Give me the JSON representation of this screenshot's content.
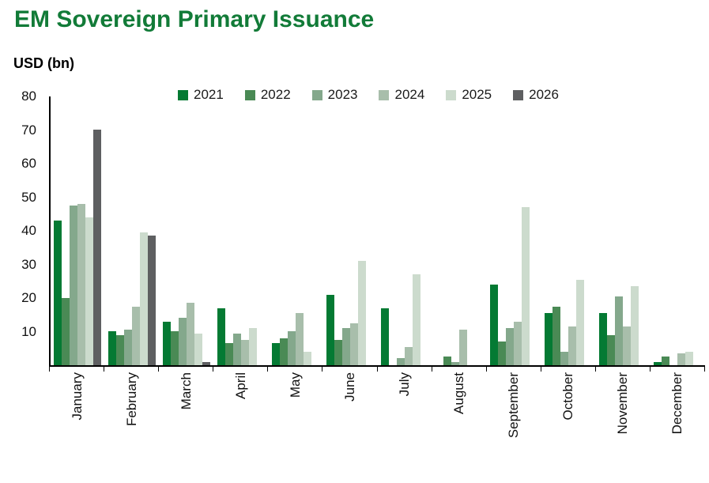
{
  "colors": {
    "title_green": "#127B38",
    "axis": "#000000",
    "background": "#ffffff",
    "series_2021": "#047A33",
    "series_2022": "#4A8A55",
    "series_2023": "#84A88C",
    "series_2024": "#A8BEAB",
    "series_2025": "#CCDBCD",
    "series_2026": "#5E5F61"
  },
  "chart_data": {
    "type": "bar",
    "title": "EM Sovereign Primary Issuance",
    "ylabel": "USD (bn)",
    "xlabel": "",
    "ylim": [
      0,
      80
    ],
    "yticks": [
      10,
      20,
      30,
      40,
      50,
      60,
      70,
      80
    ],
    "grid": false,
    "legend_position": "top",
    "categories": [
      "January",
      "February",
      "March",
      "April",
      "May",
      "June",
      "July",
      "August",
      "September",
      "October",
      "November",
      "December"
    ],
    "series": [
      {
        "name": "2021",
        "color": "#047A33",
        "values": [
          43,
          10,
          13,
          17,
          6.5,
          21,
          17,
          0,
          24,
          15.5,
          15.5,
          1
        ]
      },
      {
        "name": "2022",
        "color": "#4A8A55",
        "values": [
          20,
          9,
          10,
          6.5,
          8,
          7.5,
          0,
          2.5,
          7,
          17.5,
          9,
          2.5
        ]
      },
      {
        "name": "2023",
        "color": "#84A88C",
        "values": [
          47.5,
          10.5,
          14,
          9.5,
          10,
          11,
          2,
          1,
          11,
          4,
          20.5,
          0
        ]
      },
      {
        "name": "2024",
        "color": "#A8BEAB",
        "values": [
          48,
          17.5,
          18.5,
          7.5,
          15.5,
          12.5,
          5.5,
          10.5,
          13,
          11.5,
          11.5,
          3.5
        ]
      },
      {
        "name": "2025",
        "color": "#CCDBCD",
        "values": [
          44,
          39.5,
          9.5,
          11,
          4,
          31,
          27,
          0,
          47,
          25.5,
          23.5,
          4
        ]
      },
      {
        "name": "2026",
        "color": "#5E5F61",
        "values": [
          70,
          38.5,
          1,
          0,
          0,
          0,
          0,
          0,
          0,
          0,
          0,
          0
        ]
      }
    ]
  }
}
